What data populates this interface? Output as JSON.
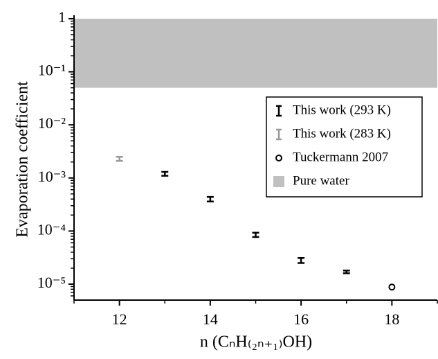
{
  "chart_data": {
    "type": "scatter",
    "y_label": "Evaporation coefficient",
    "x_label": "n (CₙH₍₂ₙ₊₁₎OH)",
    "xlim": [
      11,
      19
    ],
    "xticks": [
      12,
      14,
      16,
      18
    ],
    "ylim": [
      5e-06,
      1
    ],
    "yticks": [
      1,
      {
        "value": 0.1,
        "label": "10⁻¹"
      },
      {
        "value": 0.01,
        "label": "10⁻²"
      },
      {
        "value": 0.001,
        "label": "10⁻³"
      },
      {
        "value": 0.0001,
        "label": "10⁻⁴"
      },
      {
        "value": 1e-05,
        "label": "10⁻⁵"
      }
    ],
    "log_y": true,
    "legend": "upper right",
    "series": [
      {
        "name": "This work (293 K)",
        "color": "#000000",
        "marker": "errorbar",
        "x": [
          13,
          14,
          15,
          16,
          17
        ],
        "values": [
          0.0012,
          0.0004,
          8.5e-05,
          2.8e-05,
          1.7e-05
        ],
        "errors": [
          0.0001,
          4e-05,
          8e-06,
          3e-06,
          1e-06
        ]
      },
      {
        "name": "This work (283 K)",
        "color": "#999999",
        "marker": "errorbar",
        "x": [
          12
        ],
        "values": [
          0.0023
        ],
        "errors": [
          0.0002
        ]
      },
      {
        "name": "Tuckermann 2007",
        "color": "#000000",
        "marker": "circle",
        "x": [
          18
        ],
        "values": [
          8.8e-06
        ]
      }
    ],
    "band": {
      "name": "Pure water",
      "color": "#c0c0c0",
      "range": [
        0.05,
        1
      ]
    }
  }
}
